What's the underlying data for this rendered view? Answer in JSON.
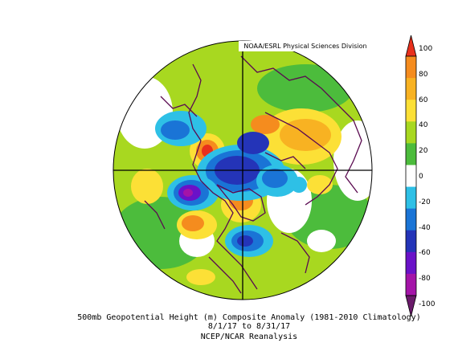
{
  "credit": "NOAA/ESRL Physical Sciences Division",
  "caption": {
    "line1": "500mb Geopotential Height (m) Composite Anomaly (1981-2010 Climatology)",
    "line2": "8/1/17  to 8/31/17",
    "line3": "NCEP/NCAR Reanalysis"
  },
  "colorbar": {
    "ticks": [
      "100",
      "80",
      "60",
      "40",
      "20",
      "0",
      "-20",
      "-40",
      "-60",
      "-80",
      "-100"
    ],
    "colors": [
      "#e8301c",
      "#f58c1e",
      "#f8b222",
      "#fce036",
      "#a8d820",
      "#4cbc3c",
      "#ffffff",
      "#2ec0e6",
      "#1a74d6",
      "#2434b8",
      "#6a12c8",
      "#a414a8",
      "#6a1a6a"
    ]
  }
}
